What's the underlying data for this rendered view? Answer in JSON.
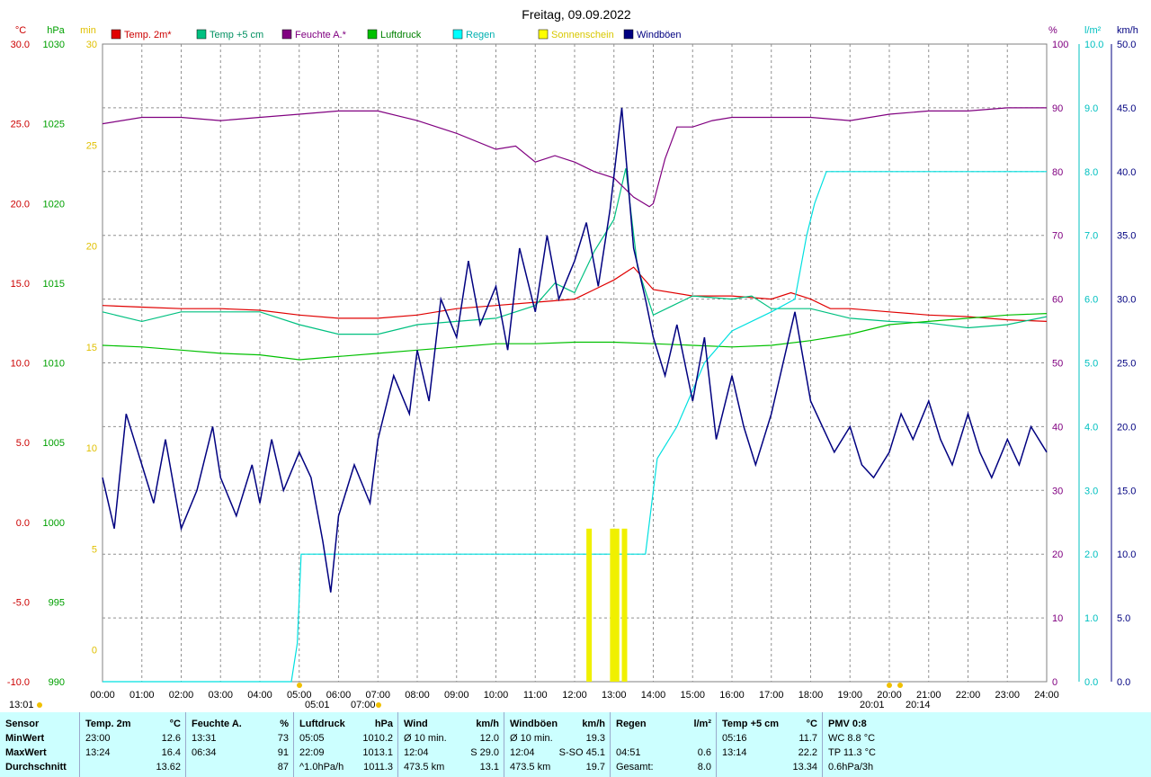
{
  "title": "Freitag, 09.09.2022",
  "left_axes": [
    {
      "unit": "°C",
      "color": "#cc0000",
      "ticks": [
        "30.0",
        "25.0",
        "20.0",
        "15.0",
        "10.0",
        "5.0",
        "0.0",
        "-5.0",
        "-10.0"
      ]
    },
    {
      "unit": "hPa",
      "color": "#00a000",
      "ticks": [
        "1030",
        "1025",
        "1020",
        "1015",
        "1010",
        "1005",
        "1000",
        "995",
        "990"
      ]
    },
    {
      "unit": "min",
      "color": "#e0c000",
      "ticks": [
        "30",
        "25",
        "20",
        "15",
        "10",
        "5",
        "0"
      ]
    }
  ],
  "right_axes": [
    {
      "unit": "%",
      "color": "#800080",
      "ticks": [
        "100",
        "90",
        "80",
        "70",
        "60",
        "50",
        "40",
        "30",
        "20",
        "10",
        "0"
      ]
    },
    {
      "unit": "l/m²",
      "color": "#00c0c0",
      "ticks": [
        "10.0",
        "9.0",
        "8.0",
        "7.0",
        "6.0",
        "5.0",
        "4.0",
        "3.0",
        "2.0",
        "1.0",
        "0.0"
      ]
    },
    {
      "unit": "km/h",
      "color": "#000080",
      "ticks": [
        "50.0",
        "45.0",
        "40.0",
        "35.0",
        "30.0",
        "25.0",
        "20.0",
        "15.0",
        "10.0",
        "5.0",
        "0.0"
      ]
    }
  ],
  "time_ticks": [
    "00:00",
    "01:00",
    "02:00",
    "03:00",
    "04:00",
    "05:00",
    "06:00",
    "07:00",
    "08:00",
    "09:00",
    "10:00",
    "11:00",
    "12:00",
    "13:00",
    "14:00",
    "15:00",
    "16:00",
    "17:00",
    "18:00",
    "19:00",
    "20:00",
    "21:00",
    "22:00",
    "23:00",
    "24:00"
  ],
  "sun_markers": {
    "rise": "05:01",
    "rise2": "07:00",
    "set": "20:01",
    "set2": "20:14",
    "left": "13:01"
  },
  "chart_data": {
    "type": "line",
    "title": "Freitag, 09.09.2022",
    "x_unit": "hour",
    "xlim": [
      0,
      24
    ],
    "series": [
      {
        "name": "Temp. 2m*",
        "color": "#e00000",
        "axis": "°C",
        "ylim": [
          -10,
          30
        ],
        "points": [
          [
            0,
            13.6
          ],
          [
            1,
            13.5
          ],
          [
            2,
            13.4
          ],
          [
            3,
            13.4
          ],
          [
            4,
            13.3
          ],
          [
            5,
            13.0
          ],
          [
            6,
            12.8
          ],
          [
            7,
            12.8
          ],
          [
            8,
            13.0
          ],
          [
            9,
            13.4
          ],
          [
            10,
            13.6
          ],
          [
            11,
            13.8
          ],
          [
            12,
            14.0
          ],
          [
            12.5,
            14.6
          ],
          [
            13,
            15.2
          ],
          [
            13.5,
            16.0
          ],
          [
            14,
            14.6
          ],
          [
            15,
            14.2
          ],
          [
            16,
            14.2
          ],
          [
            17,
            14.0
          ],
          [
            17.5,
            14.4
          ],
          [
            18,
            14.0
          ],
          [
            18.5,
            13.4
          ],
          [
            19,
            13.4
          ],
          [
            20,
            13.2
          ],
          [
            21,
            13.0
          ],
          [
            22,
            12.9
          ],
          [
            23,
            12.7
          ],
          [
            24,
            12.6
          ]
        ]
      },
      {
        "name": "Temp +5 cm",
        "color": "#00c080",
        "axis": "°C",
        "ylim": [
          -10,
          30
        ],
        "points": [
          [
            0,
            13.2
          ],
          [
            1,
            12.6
          ],
          [
            2,
            13.2
          ],
          [
            3,
            13.2
          ],
          [
            4,
            13.2
          ],
          [
            5,
            12.4
          ],
          [
            6,
            11.8
          ],
          [
            7,
            11.8
          ],
          [
            8,
            12.4
          ],
          [
            9,
            12.6
          ],
          [
            10,
            12.8
          ],
          [
            11,
            13.6
          ],
          [
            11.5,
            15.0
          ],
          [
            12,
            14.4
          ],
          [
            12.5,
            17.0
          ],
          [
            13,
            19.0
          ],
          [
            13.3,
            22.2
          ],
          [
            13.6,
            16.0
          ],
          [
            14,
            13.0
          ],
          [
            14.5,
            13.6
          ],
          [
            15,
            14.2
          ],
          [
            16,
            14.0
          ],
          [
            16.5,
            14.2
          ],
          [
            17,
            13.4
          ],
          [
            18,
            13.4
          ],
          [
            19,
            12.8
          ],
          [
            20,
            12.6
          ],
          [
            21,
            12.5
          ],
          [
            22,
            12.2
          ],
          [
            23,
            12.4
          ],
          [
            24,
            12.9
          ]
        ]
      },
      {
        "name": "Feuchte A.*",
        "color": "#800080",
        "axis": "%",
        "ylim": [
          0,
          100
        ],
        "points": [
          [
            0,
            87.5
          ],
          [
            1,
            88.5
          ],
          [
            2,
            88.5
          ],
          [
            3,
            88.0
          ],
          [
            4,
            88.5
          ],
          [
            5,
            89.0
          ],
          [
            6,
            89.5
          ],
          [
            7,
            89.5
          ],
          [
            8,
            88.0
          ],
          [
            9,
            86.0
          ],
          [
            10,
            83.5
          ],
          [
            10.5,
            84.0
          ],
          [
            11,
            81.5
          ],
          [
            11.5,
            82.5
          ],
          [
            12,
            81.5
          ],
          [
            12.5,
            80.0
          ],
          [
            13,
            79.0
          ],
          [
            13.5,
            76.0
          ],
          [
            13.9,
            74.5
          ],
          [
            14,
            75.0
          ],
          [
            14.3,
            82.0
          ],
          [
            14.6,
            87.0
          ],
          [
            15,
            87.0
          ],
          [
            15.5,
            88.0
          ],
          [
            16,
            88.5
          ],
          [
            17,
            88.5
          ],
          [
            18,
            88.5
          ],
          [
            19,
            88.0
          ],
          [
            20,
            89.0
          ],
          [
            21,
            89.5
          ],
          [
            22,
            89.5
          ],
          [
            23,
            90.0
          ],
          [
            24,
            90.0
          ]
        ]
      },
      {
        "name": "Luftdruck",
        "color": "#00c000",
        "axis": "hPa",
        "ylim": [
          990,
          1030
        ],
        "points": [
          [
            0,
            1011.1
          ],
          [
            1,
            1011.0
          ],
          [
            2,
            1010.8
          ],
          [
            3,
            1010.6
          ],
          [
            4,
            1010.5
          ],
          [
            5,
            1010.2
          ],
          [
            6,
            1010.4
          ],
          [
            7,
            1010.6
          ],
          [
            8,
            1010.8
          ],
          [
            9,
            1011.0
          ],
          [
            10,
            1011.2
          ],
          [
            11,
            1011.2
          ],
          [
            12,
            1011.3
          ],
          [
            13,
            1011.3
          ],
          [
            14,
            1011.2
          ],
          [
            15,
            1011.1
          ],
          [
            16,
            1011.0
          ],
          [
            17,
            1011.1
          ],
          [
            18,
            1011.4
          ],
          [
            19,
            1011.8
          ],
          [
            20,
            1012.4
          ],
          [
            21,
            1012.6
          ],
          [
            22,
            1012.8
          ],
          [
            23,
            1013.0
          ],
          [
            24,
            1013.1
          ]
        ]
      },
      {
        "name": "Regen",
        "color": "#00e0e0",
        "axis": "l/m²",
        "ylim": [
          0,
          10
        ],
        "points": [
          [
            0,
            0
          ],
          [
            4.8,
            0
          ],
          [
            4.95,
            0.6
          ],
          [
            5.05,
            2.0
          ],
          [
            13.8,
            2.0
          ],
          [
            14.1,
            3.5
          ],
          [
            14.6,
            4.0
          ],
          [
            15.3,
            5.0
          ],
          [
            16.0,
            5.5
          ],
          [
            17.0,
            5.8
          ],
          [
            17.6,
            6.0
          ],
          [
            17.9,
            7.0
          ],
          [
            18.1,
            7.5
          ],
          [
            18.4,
            8.0
          ],
          [
            24,
            8.0
          ]
        ]
      },
      {
        "name": "Sonnenschein",
        "color": "#f0f000",
        "axis": "min",
        "ylim": [
          0,
          30
        ],
        "bars": [
          [
            12.3,
            1.2
          ],
          [
            12.9,
            1.2
          ],
          [
            13.0,
            1.2
          ],
          [
            13.2,
            1.2
          ]
        ]
      },
      {
        "name": "Windböen",
        "color": "#000080",
        "axis": "km/h",
        "ylim": [
          0,
          50
        ],
        "points": [
          [
            0,
            16
          ],
          [
            0.3,
            12
          ],
          [
            0.6,
            21
          ],
          [
            1,
            17
          ],
          [
            1.3,
            14
          ],
          [
            1.6,
            19
          ],
          [
            2,
            12
          ],
          [
            2.4,
            15
          ],
          [
            2.8,
            20
          ],
          [
            3,
            16
          ],
          [
            3.4,
            13
          ],
          [
            3.8,
            17
          ],
          [
            4,
            14
          ],
          [
            4.3,
            19
          ],
          [
            4.6,
            15
          ],
          [
            5,
            18
          ],
          [
            5.3,
            16
          ],
          [
            5.6,
            11
          ],
          [
            5.8,
            7
          ],
          [
            6,
            13
          ],
          [
            6.4,
            17
          ],
          [
            6.8,
            14
          ],
          [
            7,
            19
          ],
          [
            7.4,
            24
          ],
          [
            7.8,
            21
          ],
          [
            8,
            26
          ],
          [
            8.3,
            22
          ],
          [
            8.6,
            30
          ],
          [
            9,
            27
          ],
          [
            9.3,
            33
          ],
          [
            9.6,
            28
          ],
          [
            10,
            31
          ],
          [
            10.3,
            26
          ],
          [
            10.6,
            34
          ],
          [
            11,
            29
          ],
          [
            11.3,
            35
          ],
          [
            11.6,
            30
          ],
          [
            12,
            33
          ],
          [
            12.3,
            36
          ],
          [
            12.6,
            31
          ],
          [
            12.9,
            37
          ],
          [
            13.2,
            45
          ],
          [
            13.5,
            34
          ],
          [
            13.8,
            30
          ],
          [
            14,
            27
          ],
          [
            14.3,
            24
          ],
          [
            14.6,
            28
          ],
          [
            15,
            22
          ],
          [
            15.3,
            27
          ],
          [
            15.6,
            19
          ],
          [
            16,
            24
          ],
          [
            16.3,
            20
          ],
          [
            16.6,
            17
          ],
          [
            17,
            21
          ],
          [
            17.3,
            25
          ],
          [
            17.6,
            29
          ],
          [
            18,
            22
          ],
          [
            18.3,
            20
          ],
          [
            18.6,
            18
          ],
          [
            19,
            20
          ],
          [
            19.3,
            17
          ],
          [
            19.6,
            16
          ],
          [
            20,
            18
          ],
          [
            20.3,
            21
          ],
          [
            20.6,
            19
          ],
          [
            21,
            22
          ],
          [
            21.3,
            19
          ],
          [
            21.6,
            17
          ],
          [
            22,
            21
          ],
          [
            22.3,
            18
          ],
          [
            22.6,
            16
          ],
          [
            23,
            19
          ],
          [
            23.3,
            17
          ],
          [
            23.6,
            20
          ],
          [
            24,
            18
          ]
        ]
      }
    ]
  },
  "legend": [
    {
      "label": "Temp. 2m*",
      "color": "#e00000",
      "text_color": "#cc0000"
    },
    {
      "label": "Temp +5 cm",
      "color": "#00c080",
      "text_color": "#009060"
    },
    {
      "label": "Feuchte A.*",
      "color": "#800080",
      "text_color": "#800080"
    },
    {
      "label": "Luftdruck",
      "color": "#00c000",
      "text_color": "#008000"
    },
    {
      "label": "Regen",
      "color": "#00ffff",
      "text_color": "#00b0b0"
    },
    {
      "label": "Sonnenschein",
      "color": "#ffff00",
      "text_color": "#d8c800"
    },
    {
      "label": "Windböen",
      "color": "#000080",
      "text_color": "#000080"
    }
  ],
  "stats": {
    "labels": {
      "header": "Sensor",
      "min": "MinWert",
      "max": "MaxWert",
      "avg": "Durchschnitt"
    },
    "columns": [
      {
        "header": "Temp. 2m",
        "unit": "°C",
        "rows": [
          [
            "23:00",
            "12.6"
          ],
          [
            "13:24",
            "16.4"
          ],
          [
            "",
            "13.62"
          ]
        ]
      },
      {
        "header": "Feuchte A.",
        "unit": "%",
        "rows": [
          [
            "13:31",
            "73"
          ],
          [
            "06:34",
            "91"
          ],
          [
            "",
            "87"
          ]
        ]
      },
      {
        "header": "Luftdruck",
        "unit": "hPa",
        "rows": [
          [
            "05:05",
            "1010.2"
          ],
          [
            "22:09",
            "1013.1"
          ],
          [
            "^1.0hPa/h",
            "1011.3"
          ]
        ]
      },
      {
        "header": "Wind",
        "unit": "km/h",
        "rows": [
          [
            "Ø 10 min.",
            "12.0"
          ],
          [
            "12:04",
            "S 29.0"
          ],
          [
            "473.5 km",
            "13.1"
          ]
        ]
      },
      {
        "header": "Windböen",
        "unit": "km/h",
        "rows": [
          [
            "Ø 10 min.",
            "19.3"
          ],
          [
            "12:04",
            "S-SO 45.1"
          ],
          [
            "473.5 km",
            "19.7"
          ]
        ]
      },
      {
        "header": "Regen",
        "unit": "l/m²",
        "rows": [
          [
            "",
            ""
          ],
          [
            "04:51",
            "0.6"
          ],
          [
            "Gesamt:",
            "8.0"
          ]
        ]
      },
      {
        "header": "Temp +5 cm",
        "unit": "°C",
        "rows": [
          [
            "05:16",
            "11.7"
          ],
          [
            "13:14",
            "22.2"
          ],
          [
            "",
            "13.34"
          ]
        ]
      },
      {
        "header": "PMV 0:8",
        "unit": "",
        "rows": [
          [
            "WC 8.8 °C",
            ""
          ],
          [
            "TP 11.3 °C",
            ""
          ],
          [
            "0.6hPa/3h",
            ""
          ]
        ]
      }
    ]
  }
}
